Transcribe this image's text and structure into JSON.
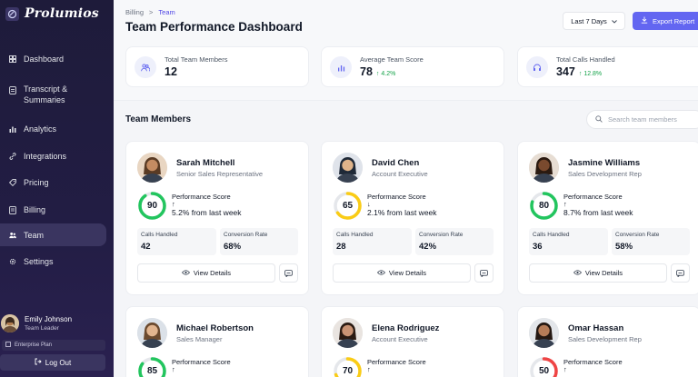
{
  "brand": {
    "name": "Prolumios"
  },
  "sidebar": {
    "items": [
      {
        "label": "Dashboard",
        "icon": "grid-icon"
      },
      {
        "label": "Transcript &\nSummaries",
        "icon": "document-icon"
      },
      {
        "label": "Analytics",
        "icon": "bar-chart-icon"
      },
      {
        "label": "Integrations",
        "icon": "link-icon"
      },
      {
        "label": "Pricing",
        "icon": "tag-icon"
      },
      {
        "label": "Billing",
        "icon": "receipt-icon"
      },
      {
        "label": "Team",
        "icon": "users-icon",
        "active": true
      },
      {
        "label": "Settings",
        "icon": "gear-icon"
      }
    ],
    "profile": {
      "name": "Emily Johnson",
      "role": "Team Leader"
    },
    "plan": "Enterprise Plan",
    "logout": "Log Out"
  },
  "breadcrumb": {
    "parent": "Billing",
    "separator": ">",
    "current": "Team"
  },
  "header": {
    "title": "Team Performance Dashboard",
    "range": "Last 7 Days",
    "export": "Export Report"
  },
  "stats": [
    {
      "label": "Total Team Members",
      "value": "12",
      "change": ""
    },
    {
      "label": "Average Team Score",
      "value": "78",
      "change": "4.2%"
    },
    {
      "label": "Total Calls Handled",
      "value": "347",
      "change": "12.8%"
    }
  ],
  "team": {
    "title": "Team Members",
    "search_placeholder": "Search team members",
    "score_label": "Performance Score",
    "calls_label": "Calls Handled",
    "conversion_label": "Conversion Rate",
    "details_label": "View Details",
    "members": [
      {
        "name": "Sarah Mitchell",
        "role": "Senior Sales Representative",
        "score": "90",
        "score_value": 90,
        "trend": "↑",
        "change": "5.2% from last week",
        "calls": "42",
        "conversion": "68%",
        "color": "#22c55e"
      },
      {
        "name": "David Chen",
        "role": "Account Executive",
        "score": "65",
        "score_value": 65,
        "trend": "↓",
        "change": "2.1% from last week",
        "calls": "28",
        "conversion": "42%",
        "color": "#facc15"
      },
      {
        "name": "Jasmine Williams",
        "role": "Sales Development Rep",
        "score": "80",
        "score_value": 80,
        "trend": "↑",
        "change": "8.7% from last week",
        "calls": "36",
        "conversion": "58%",
        "color": "#22c55e"
      },
      {
        "name": "Michael Robertson",
        "role": "Sales Manager",
        "score": "85",
        "score_value": 85,
        "trend": "↑",
        "change": "",
        "calls": "",
        "conversion": "",
        "color": "#22c55e"
      },
      {
        "name": "Elena Rodriguez",
        "role": "Account Executive",
        "score": "70",
        "score_value": 70,
        "trend": "↑",
        "change": "",
        "calls": "",
        "conversion": "",
        "color": "#facc15"
      },
      {
        "name": "Omar Hassan",
        "role": "Sales Development Rep",
        "score": "50",
        "score_value": 50,
        "trend": "↑",
        "change": "",
        "calls": "",
        "conversion": "",
        "color": "#ef4444"
      }
    ]
  }
}
